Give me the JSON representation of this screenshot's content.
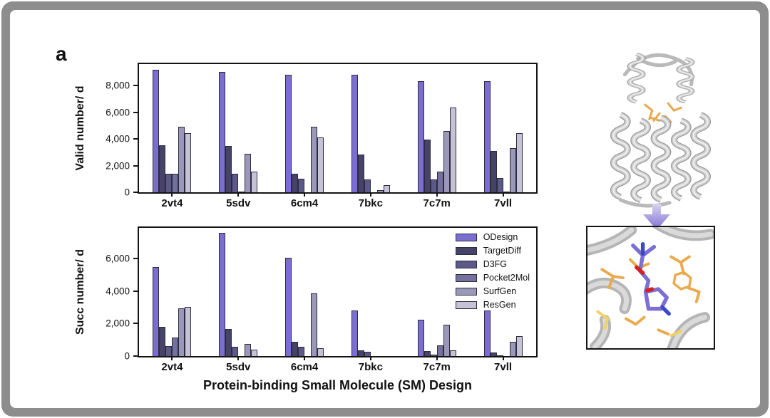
{
  "panel_label": "a",
  "xaxis_title": "Protein-binding Small Molecule (SM) Design",
  "chart_data": [
    {
      "type": "bar",
      "title": "",
      "ylabel": "Valid number/ d",
      "xlabel": "",
      "grid": false,
      "legend": false,
      "categories": [
        "2vt4",
        "5sdv",
        "6cm4",
        "7bkc",
        "7c7m",
        "7vll"
      ],
      "series": [
        {
          "name": "ODesign",
          "color": "#7C6DD1",
          "values": [
            9150,
            9000,
            8800,
            8800,
            8300,
            8300
          ]
        },
        {
          "name": "TargetDiff",
          "color": "#474368",
          "values": [
            3500,
            3450,
            1400,
            2850,
            3950,
            3100
          ]
        },
        {
          "name": "D3FG",
          "color": "#5C5887",
          "values": [
            1400,
            1400,
            1000,
            950,
            950,
            1050
          ]
        },
        {
          "name": "Pocket2Mol",
          "color": "#75719F",
          "values": [
            1380,
            60,
            0,
            0,
            1550,
            60
          ]
        },
        {
          "name": "SurfGen",
          "color": "#9B97B9",
          "values": [
            4900,
            2900,
            4900,
            160,
            4600,
            3300
          ]
        },
        {
          "name": "ResGen",
          "color": "#C5C2D6",
          "values": [
            4450,
            1550,
            4100,
            550,
            6350,
            4450
          ]
        }
      ],
      "ylim": [
        0,
        9600
      ],
      "yticks": [
        0,
        2000,
        4000,
        6000,
        8000
      ],
      "ytick_labels": [
        "0",
        "2,000",
        "4,000",
        "6,000",
        "8,000"
      ]
    },
    {
      "type": "bar",
      "title": "",
      "ylabel": "Succ number/ d",
      "xlabel": "Protein-binding Small Molecule (SM) Design",
      "grid": false,
      "legend": true,
      "legend_position": "top-right",
      "categories": [
        "2vt4",
        "5sdv",
        "6cm4",
        "7bkc",
        "7c7m",
        "7vll"
      ],
      "series": [
        {
          "name": "ODesign",
          "color": "#7C6DD1",
          "values": [
            5500,
            7600,
            6050,
            2800,
            2250,
            2800
          ]
        },
        {
          "name": "TargetDiff",
          "color": "#474368",
          "values": [
            1800,
            1650,
            900,
            350,
            300,
            200
          ]
        },
        {
          "name": "D3FG",
          "color": "#5C5887",
          "values": [
            600,
            550,
            550,
            280,
            100,
            40
          ]
        },
        {
          "name": "Pocket2Mol",
          "color": "#75719F",
          "values": [
            1150,
            0,
            0,
            0,
            650,
            0
          ]
        },
        {
          "name": "SurfGen",
          "color": "#9B97B9",
          "values": [
            2950,
            750,
            3850,
            0,
            1950,
            900
          ]
        },
        {
          "name": "ResGen",
          "color": "#C5C2D6",
          "values": [
            3050,
            400,
            500,
            0,
            350,
            1250
          ]
        }
      ],
      "ylim": [
        0,
        7900
      ],
      "yticks": [
        0,
        2000,
        4000,
        6000
      ],
      "ytick_labels": [
        "0",
        "2,000",
        "4,000",
        "6,000"
      ]
    }
  ],
  "illustration": {
    "ribbon_color": "#c6c6c6",
    "ribbon_shadow_color": "#9a9a9a",
    "pocket_residue_color": "#e8a94f",
    "pocket_residue_light_color": "#f1d264",
    "ligand_color": "#7b6fd2",
    "oxygen_color": "#d42020",
    "nitrogen_color": "#3b49c4",
    "arrow_color": "#7f70d4"
  }
}
